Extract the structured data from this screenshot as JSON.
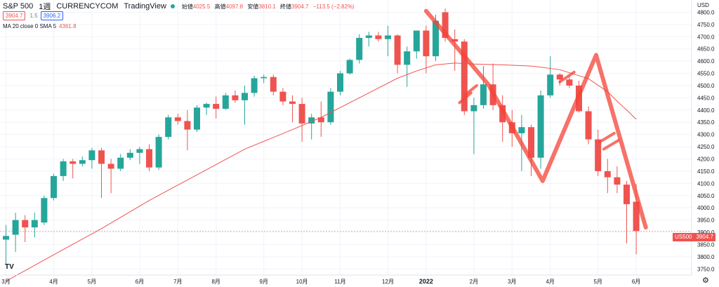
{
  "header": {
    "symbol": "S&P 500",
    "interval": "1週",
    "source": "CURRENCYCOM",
    "platform": "TradingView",
    "ohlc": [
      {
        "label": "始値",
        "value": "4025.5"
      },
      {
        "label": "高値",
        "value": "4097.8"
      },
      {
        "label": "安値",
        "value": "3810.1"
      },
      {
        "label": "終値",
        "value": "3904.7"
      }
    ],
    "change": "−113.5 (−2.82%)",
    "sell_price": "3904.7",
    "spread": "1.5",
    "buy_price": "3906.2"
  },
  "indicator": {
    "label": "MA 20 close 0 SMA 5",
    "value": "4361.8"
  },
  "axis_currency": "USD",
  "price_label": {
    "symbol": "US500",
    "value": "3904.7"
  },
  "logo_text": "TV",
  "settings_icon": "gear-icon",
  "colors": {
    "up": "#26a69a",
    "down": "#ef5350",
    "ma": "#ef5350",
    "drawing": "#f44336"
  },
  "chart_data": {
    "type": "candlestick",
    "title": "",
    "xlabel": "",
    "ylabel": "",
    "ylim": [
      3725,
      4850
    ],
    "y_ticks": [
      3750,
      3800,
      3850,
      3900,
      3950,
      4000,
      4050,
      4100,
      4150,
      4200,
      4250,
      4300,
      4350,
      4400,
      4450,
      4500,
      4550,
      4600,
      4650,
      4700,
      4750,
      4800
    ],
    "x_ticks": [
      {
        "label": "3月",
        "i": 0,
        "bold": false
      },
      {
        "label": "4月",
        "i": 5,
        "bold": false
      },
      {
        "label": "5月",
        "i": 9,
        "bold": false
      },
      {
        "label": "6月",
        "i": 14,
        "bold": false
      },
      {
        "label": "7月",
        "i": 18,
        "bold": false
      },
      {
        "label": "8月",
        "i": 22,
        "bold": false
      },
      {
        "label": "9月",
        "i": 27,
        "bold": false
      },
      {
        "label": "10月",
        "i": 31,
        "bold": false
      },
      {
        "label": "11月",
        "i": 35,
        "bold": false
      },
      {
        "label": "12月",
        "i": 40,
        "bold": false
      },
      {
        "label": "2022",
        "i": 44,
        "bold": true
      },
      {
        "label": "2月",
        "i": 49,
        "bold": false
      },
      {
        "label": "3月",
        "i": 53,
        "bold": false
      },
      {
        "label": "4月",
        "i": 57,
        "bold": false
      },
      {
        "label": "5月",
        "i": 62,
        "bold": false
      },
      {
        "label": "6月",
        "i": 66,
        "bold": false
      }
    ],
    "candles": [
      {
        "o": 3870,
        "h": 3930,
        "l": 3770,
        "c": 3885
      },
      {
        "o": 3890,
        "h": 3980,
        "l": 3820,
        "c": 3950
      },
      {
        "o": 3950,
        "h": 3970,
        "l": 3860,
        "c": 3920
      },
      {
        "o": 3920,
        "h": 3980,
        "l": 3880,
        "c": 3950
      },
      {
        "o": 3940,
        "h": 4050,
        "l": 3930,
        "c": 4040
      },
      {
        "o": 4040,
        "h": 4140,
        "l": 4030,
        "c": 4130
      },
      {
        "o": 4130,
        "h": 4200,
        "l": 4110,
        "c": 4190
      },
      {
        "o": 4190,
        "h": 4200,
        "l": 4120,
        "c": 4180
      },
      {
        "o": 4180,
        "h": 4210,
        "l": 4170,
        "c": 4195
      },
      {
        "o": 4195,
        "h": 4245,
        "l": 4160,
        "c": 4235
      },
      {
        "o": 4235,
        "h": 4245,
        "l": 4040,
        "c": 4180
      },
      {
        "o": 4180,
        "h": 4200,
        "l": 4060,
        "c": 4160
      },
      {
        "o": 4160,
        "h": 4220,
        "l": 4150,
        "c": 4205
      },
      {
        "o": 4205,
        "h": 4240,
        "l": 4195,
        "c": 4225
      },
      {
        "o": 4225,
        "h": 4250,
        "l": 4180,
        "c": 4240
      },
      {
        "o": 4240,
        "h": 4260,
        "l": 4150,
        "c": 4165
      },
      {
        "o": 4165,
        "h": 4300,
        "l": 4155,
        "c": 4290
      },
      {
        "o": 4290,
        "h": 4380,
        "l": 4280,
        "c": 4370
      },
      {
        "o": 4370,
        "h": 4385,
        "l": 4340,
        "c": 4355
      },
      {
        "o": 4355,
        "h": 4400,
        "l": 4235,
        "c": 4320
      },
      {
        "o": 4320,
        "h": 4420,
        "l": 4310,
        "c": 4410
      },
      {
        "o": 4410,
        "h": 4430,
        "l": 4380,
        "c": 4425
      },
      {
        "o": 4425,
        "h": 4455,
        "l": 4365,
        "c": 4405
      },
      {
        "o": 4405,
        "h": 4470,
        "l": 4400,
        "c": 4460
      },
      {
        "o": 4460,
        "h": 4480,
        "l": 4430,
        "c": 4440
      },
      {
        "o": 4440,
        "h": 4500,
        "l": 4340,
        "c": 4470
      },
      {
        "o": 4470,
        "h": 4540,
        "l": 4455,
        "c": 4530
      },
      {
        "o": 4530,
        "h": 4545,
        "l": 4510,
        "c": 4535
      },
      {
        "o": 4535,
        "h": 4545,
        "l": 4460,
        "c": 4475
      },
      {
        "o": 4475,
        "h": 4490,
        "l": 4420,
        "c": 4435
      },
      {
        "o": 4435,
        "h": 4460,
        "l": 4350,
        "c": 4425
      },
      {
        "o": 4425,
        "h": 4450,
        "l": 4270,
        "c": 4345
      },
      {
        "o": 4345,
        "h": 4385,
        "l": 4280,
        "c": 4370
      },
      {
        "o": 4370,
        "h": 4435,
        "l": 4290,
        "c": 4350
      },
      {
        "o": 4350,
        "h": 4490,
        "l": 4340,
        "c": 4475
      },
      {
        "o": 4475,
        "h": 4560,
        "l": 4460,
        "c": 4550
      },
      {
        "o": 4550,
        "h": 4610,
        "l": 4545,
        "c": 4605
      },
      {
        "o": 4605,
        "h": 4710,
        "l": 4590,
        "c": 4695
      },
      {
        "o": 4695,
        "h": 4720,
        "l": 4660,
        "c": 4705
      },
      {
        "o": 4705,
        "h": 4720,
        "l": 4680,
        "c": 4690
      },
      {
        "o": 4690,
        "h": 4745,
        "l": 4620,
        "c": 4705
      },
      {
        "o": 4705,
        "h": 4710,
        "l": 4550,
        "c": 4585
      },
      {
        "o": 4585,
        "h": 4660,
        "l": 4495,
        "c": 4640
      },
      {
        "o": 4640,
        "h": 4720,
        "l": 4610,
        "c": 4725
      },
      {
        "o": 4725,
        "h": 4745,
        "l": 4550,
        "c": 4620
      },
      {
        "o": 4620,
        "h": 4790,
        "l": 4600,
        "c": 4765
      },
      {
        "o": 4800,
        "h": 4815,
        "l": 4680,
        "c": 4695
      },
      {
        "o": 4690,
        "h": 4730,
        "l": 4560,
        "c": 4680
      },
      {
        "o": 4680,
        "h": 4690,
        "l": 4380,
        "c": 4395
      },
      {
        "o": 4395,
        "h": 4450,
        "l": 4220,
        "c": 4420
      },
      {
        "o": 4420,
        "h": 4580,
        "l": 4405,
        "c": 4505
      },
      {
        "o": 4505,
        "h": 4590,
        "l": 4400,
        "c": 4420
      },
      {
        "o": 4420,
        "h": 4460,
        "l": 4270,
        "c": 4350
      },
      {
        "o": 4350,
        "h": 4400,
        "l": 4250,
        "c": 4305
      },
      {
        "o": 4305,
        "h": 4380,
        "l": 4150,
        "c": 4330
      },
      {
        "o": 4330,
        "h": 4340,
        "l": 4130,
        "c": 4205
      },
      {
        "o": 4205,
        "h": 4480,
        "l": 4160,
        "c": 4460
      },
      {
        "o": 4460,
        "h": 4620,
        "l": 4450,
        "c": 4545
      },
      {
        "o": 4545,
        "h": 4550,
        "l": 4500,
        "c": 4525
      },
      {
        "o": 4525,
        "h": 4540,
        "l": 4490,
        "c": 4500
      },
      {
        "o": 4500,
        "h": 4520,
        "l": 4390,
        "c": 4395
      },
      {
        "o": 4395,
        "h": 4415,
        "l": 4260,
        "c": 4280
      },
      {
        "o": 4280,
        "h": 4320,
        "l": 4130,
        "c": 4150
      },
      {
        "o": 4150,
        "h": 4200,
        "l": 4060,
        "c": 4125
      },
      {
        "o": 4125,
        "h": 4170,
        "l": 4060,
        "c": 4095
      },
      {
        "o": 4095,
        "h": 4110,
        "l": 3855,
        "c": 4015
      },
      {
        "o": 4025,
        "h": 4098,
        "l": 3810,
        "c": 3905
      }
    ],
    "ma": [
      [
        0,
        3700
      ],
      [
        5,
        3808
      ],
      [
        10,
        3915
      ],
      [
        15,
        4030
      ],
      [
        20,
        4135
      ],
      [
        25,
        4240
      ],
      [
        30,
        4320
      ],
      [
        33,
        4370
      ],
      [
        35,
        4410
      ],
      [
        38,
        4470
      ],
      [
        41,
        4530
      ],
      [
        43,
        4560
      ],
      [
        45,
        4585
      ],
      [
        47,
        4592
      ],
      [
        49,
        4588
      ],
      [
        52,
        4585
      ],
      [
        55,
        4580
      ],
      [
        58,
        4565
      ],
      [
        61,
        4528
      ],
      [
        63,
        4475
      ],
      [
        64,
        4436
      ],
      [
        65,
        4400
      ],
      [
        66,
        4362
      ]
    ],
    "drawings": [
      {
        "points": [
          [
            44,
            4805
          ],
          [
            50.5,
            4505
          ],
          [
            56.2,
            4110
          ],
          [
            61.8,
            4625
          ],
          [
            67,
            3920
          ]
        ],
        "width": 6
      },
      {
        "points": [
          [
            47.5,
            4430
          ],
          [
            48.7,
            4470
          ]
        ],
        "width": 4
      },
      {
        "points": [
          [
            48.0,
            4460
          ],
          [
            49.3,
            4500
          ]
        ],
        "width": 4
      },
      {
        "points": [
          [
            58,
            4515
          ],
          [
            59.5,
            4555
          ]
        ],
        "width": 4
      },
      {
        "points": [
          [
            62.2,
            4270
          ],
          [
            63.7,
            4305
          ]
        ],
        "width": 4
      },
      {
        "points": [
          [
            62.6,
            4240
          ],
          [
            64.1,
            4275
          ]
        ],
        "width": 4
      }
    ],
    "price_line": 3904.7
  }
}
